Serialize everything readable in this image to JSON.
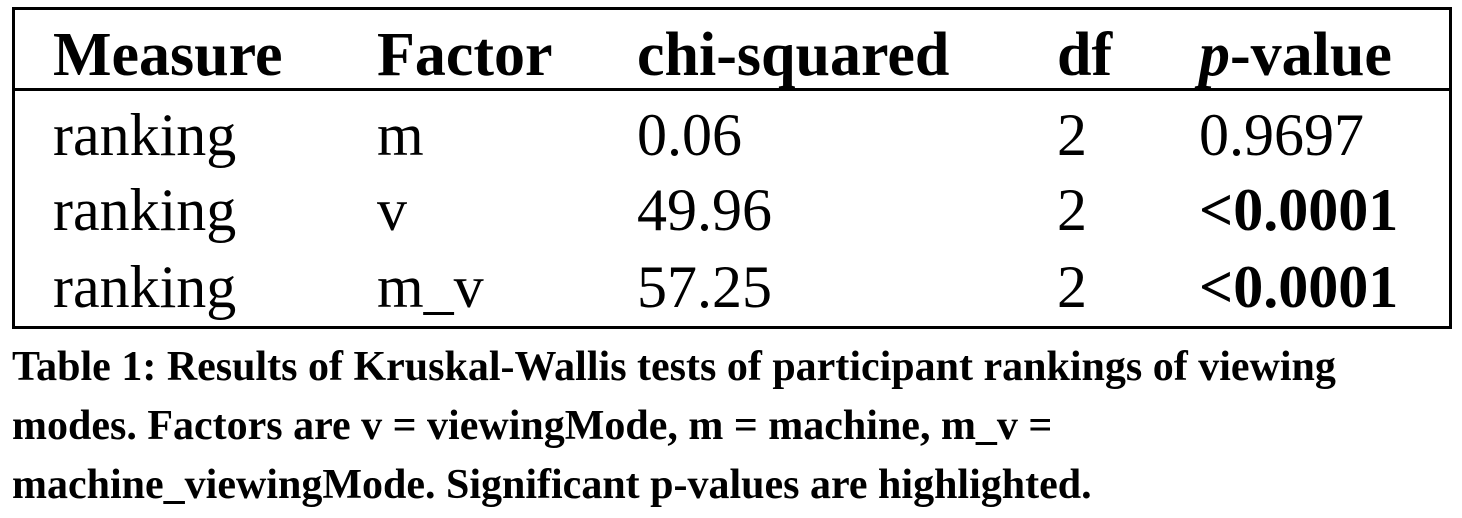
{
  "table": {
    "headers": {
      "measure": "Measure",
      "factor": "Factor",
      "chi_squared": "chi-squared",
      "df": "df",
      "p_value_italic": "p",
      "p_value_rest": "-value"
    },
    "rows": [
      {
        "measure": "ranking",
        "factor": "m",
        "chi_squared": "0.06",
        "df": "2",
        "p_value": "0.9697",
        "significant": false
      },
      {
        "measure": "ranking",
        "factor": "v",
        "chi_squared": "49.96",
        "df": "2",
        "p_value": "<0.0001",
        "significant": true
      },
      {
        "measure": "ranking",
        "factor": "m_v",
        "chi_squared": "57.25",
        "df": "2",
        "p_value": "<0.0001",
        "significant": true
      }
    ]
  },
  "caption": "Table 1: Results of Kruskal-Wallis tests of participant rankings of viewing modes. Factors are v = viewingMode, m = machine, m_v = machine_viewingMode. Significant p-values are highlighted."
}
